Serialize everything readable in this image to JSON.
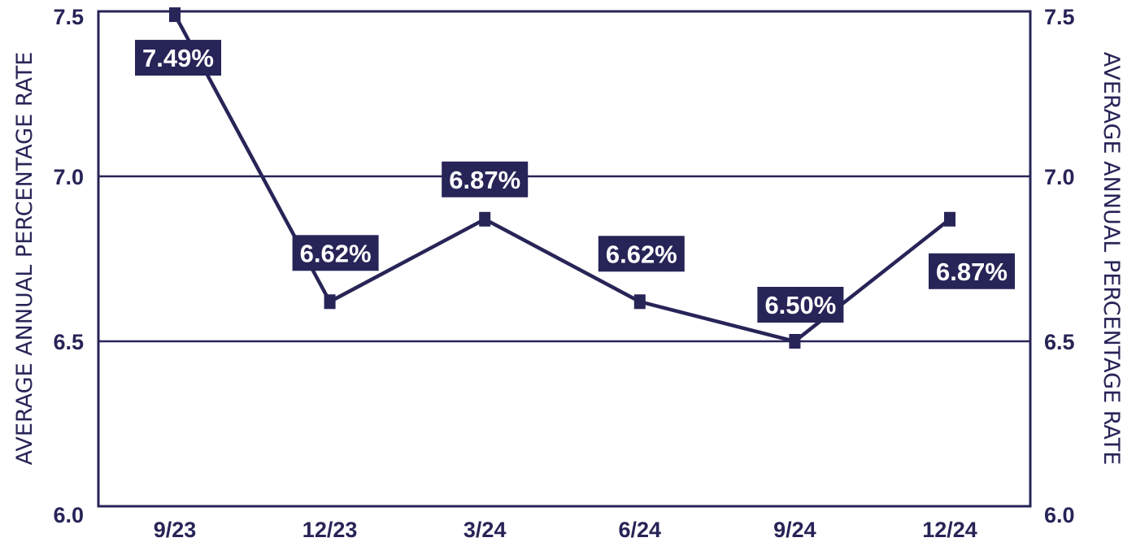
{
  "chart_data": {
    "type": "line",
    "title": "",
    "xlabel": "",
    "ylabel": "AVERAGE ANNUAL PERCENTAGE RATE",
    "ylabel_right": "AVERAGE ANNUAL PERCENTAGE RATE",
    "categories": [
      "9/23",
      "12/23",
      "3/24",
      "6/24",
      "9/24",
      "12/24"
    ],
    "series": [
      {
        "values": [
          7.49,
          6.62,
          6.87,
          6.62,
          6.5,
          6.87
        ],
        "data_labels": [
          "7.49%",
          "6.62%",
          "6.87%",
          "6.62%",
          "6.50%",
          "6.87%"
        ]
      }
    ],
    "ylim": [
      6.0,
      7.5
    ],
    "yticks": [
      "6.0",
      "6.5",
      "7.0",
      "7.5"
    ],
    "grid": true,
    "legend": "none",
    "colors": {
      "line": "#272457",
      "label_bg": "#272457",
      "label_text": "#ffffff",
      "frame": "#272457"
    }
  }
}
